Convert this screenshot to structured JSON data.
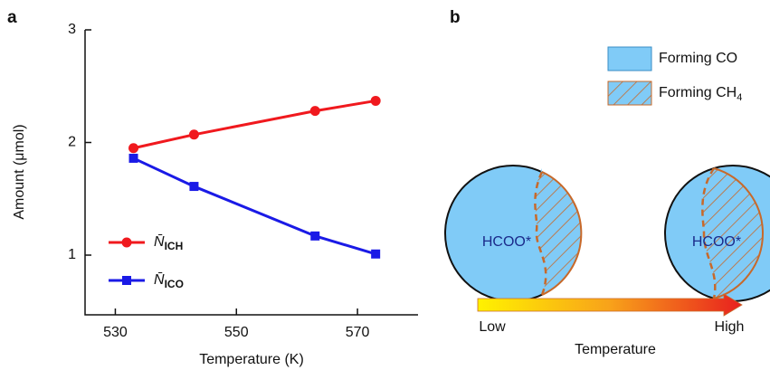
{
  "chart_data": {
    "type": "line",
    "panel_label": "a",
    "x_label": "Temperature (K)",
    "y_label": "Amount (μmol)",
    "x": [
      533,
      543,
      563,
      573
    ],
    "series": [
      {
        "name": "N̄",
        "subscript": "ICH",
        "color": "#f0191e",
        "marker": "circle",
        "values": [
          1.95,
          2.07,
          2.28,
          2.37
        ]
      },
      {
        "name": "N̄",
        "subscript": "ICO",
        "color": "#1a1ae6",
        "marker": "square",
        "values": [
          1.86,
          1.61,
          1.17,
          1.01
        ]
      }
    ],
    "xlim": [
      525,
      580
    ],
    "xticks": [
      530,
      550,
      570
    ],
    "ylim": [
      0.47,
      3
    ],
    "yticks": [
      1,
      2,
      3
    ]
  },
  "diagram": {
    "panel_label": "b",
    "legend": [
      {
        "label": "Forming CO"
      },
      {
        "label": "Forming CH",
        "subscript": "4"
      }
    ],
    "circles": [
      {
        "label": "HCOO*"
      },
      {
        "label": "HCOO*"
      }
    ],
    "arrow": {
      "start": "Low",
      "end": "High",
      "label": "Temperature"
    }
  }
}
